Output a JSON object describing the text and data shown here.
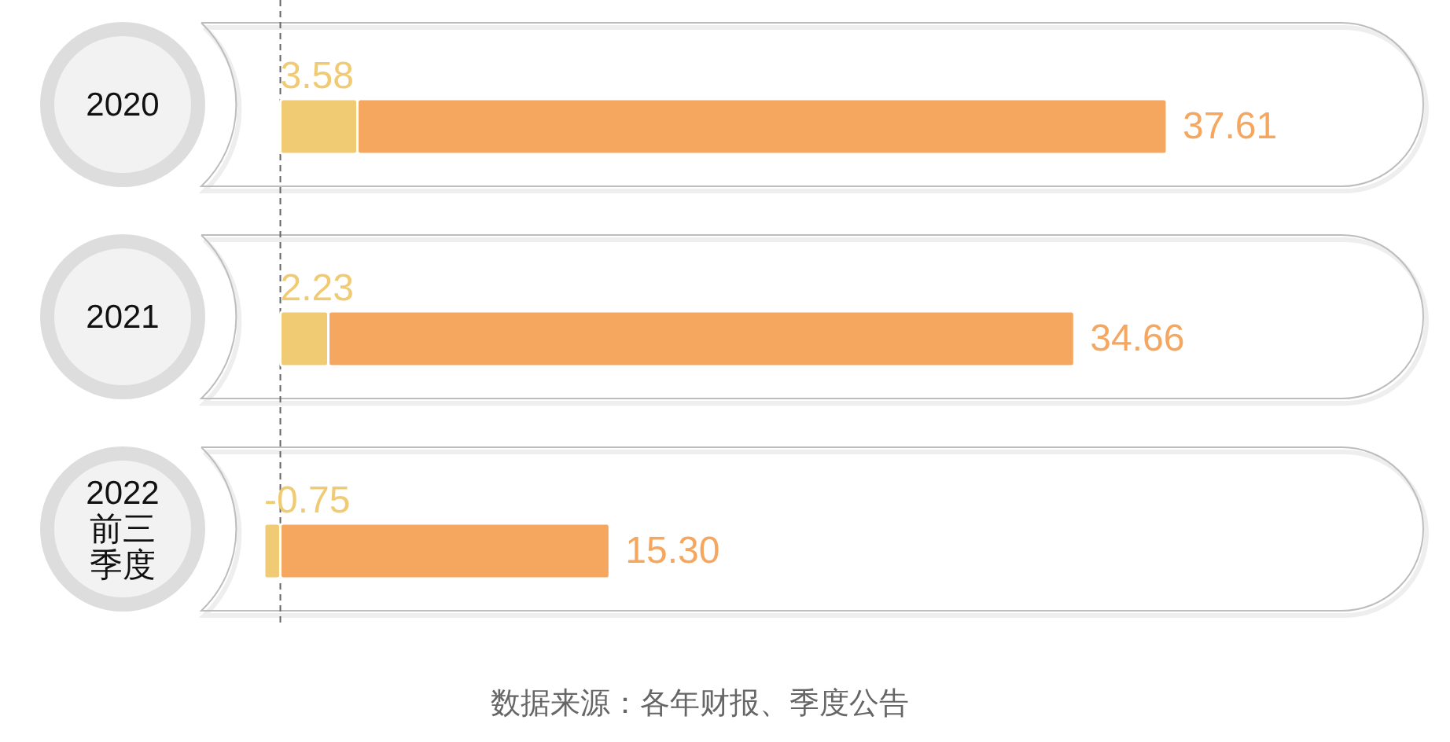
{
  "chart_data": {
    "type": "bar",
    "orientation": "horizontal",
    "stacked": true,
    "categories": [
      "2020",
      "2021",
      "2022前三季度"
    ],
    "series": [
      {
        "color": "#f0cb74",
        "values": [
          3.58,
          2.23,
          -0.75
        ],
        "value_labels": [
          "3.58",
          "2.23",
          "-0.75"
        ]
      },
      {
        "color": "#f5a65f",
        "values": [
          37.61,
          34.66,
          15.3
        ],
        "value_labels": [
          "37.61",
          "34.66",
          "15.30"
        ]
      }
    ],
    "tick_labels": "y",
    "ref_lines": [
      {
        "axis": "x",
        "value": 0,
        "color": "#666666",
        "line_style": "dashed"
      }
    ],
    "annotations": [
      "数据来源：各年财报、季度公告"
    ]
  }
}
